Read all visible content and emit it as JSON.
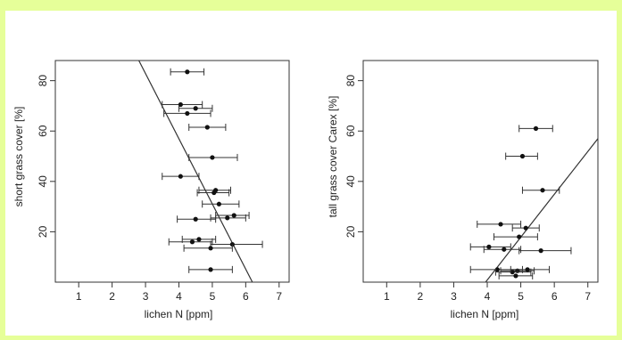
{
  "chart_data": [
    {
      "type": "scatter",
      "xlabel": "lichen N [ppm]",
      "ylabel": "short grass cover [%]",
      "x_ticks": [
        1,
        2,
        3,
        4,
        5,
        6,
        7
      ],
      "y_ticks": [
        20,
        40,
        60,
        80
      ],
      "xlim": [
        0.3,
        7.3
      ],
      "ylim": [
        0,
        88
      ],
      "points": [
        {
          "x": 4.25,
          "y": 83.5,
          "xerr_low": 3.75,
          "xerr_high": 4.75
        },
        {
          "x": 4.05,
          "y": 70.5,
          "xerr_low": 3.5,
          "xerr_high": 4.7
        },
        {
          "x": 4.5,
          "y": 69,
          "xerr_low": 4.0,
          "xerr_high": 5.0
        },
        {
          "x": 4.25,
          "y": 67,
          "xerr_low": 3.55,
          "xerr_high": 4.95
        },
        {
          "x": 4.85,
          "y": 61.5,
          "xerr_low": 4.3,
          "xerr_high": 5.4
        },
        {
          "x": 5.0,
          "y": 49.5,
          "xerr_low": 4.3,
          "xerr_high": 5.75
        },
        {
          "x": 4.05,
          "y": 42,
          "xerr_low": 3.5,
          "xerr_high": 4.6
        },
        {
          "x": 5.1,
          "y": 36.5,
          "xerr_low": 4.6,
          "xerr_high": 5.55
        },
        {
          "x": 5.05,
          "y": 35.5,
          "xerr_low": 4.55,
          "xerr_high": 5.5
        },
        {
          "x": 5.2,
          "y": 31,
          "xerr_low": 4.7,
          "xerr_high": 5.8
        },
        {
          "x": 5.65,
          "y": 26.5,
          "xerr_low": 5.1,
          "xerr_high": 6.1
        },
        {
          "x": 5.45,
          "y": 25.5,
          "xerr_low": 4.95,
          "xerr_high": 6.0
        },
        {
          "x": 4.5,
          "y": 25,
          "xerr_low": 3.95,
          "xerr_high": 5.1
        },
        {
          "x": 4.6,
          "y": 17,
          "xerr_low": 4.1,
          "xerr_high": 5.1
        },
        {
          "x": 4.4,
          "y": 16,
          "xerr_low": 3.7,
          "xerr_high": 5.0
        },
        {
          "x": 5.6,
          "y": 15,
          "xerr_low": 4.95,
          "xerr_high": 6.5
        },
        {
          "x": 4.95,
          "y": 13.5,
          "xerr_low": 4.15,
          "xerr_high": 5.6
        },
        {
          "x": 4.95,
          "y": 5,
          "xerr_low": 4.3,
          "xerr_high": 5.6
        }
      ],
      "fit_line": [
        {
          "x": 2.8,
          "y": 88
        },
        {
          "x": 6.2,
          "y": 0
        }
      ],
      "grid": false
    },
    {
      "type": "scatter",
      "xlabel": "lichen N [ppm]",
      "ylabel": "tall grass cover Carex [%]",
      "x_ticks": [
        1,
        2,
        3,
        4,
        5,
        6,
        7
      ],
      "y_ticks": [
        20,
        40,
        60,
        80
      ],
      "xlim": [
        0.3,
        7.3
      ],
      "ylim": [
        0,
        88
      ],
      "points": [
        {
          "x": 5.45,
          "y": 61,
          "xerr_low": 4.95,
          "xerr_high": 5.95
        },
        {
          "x": 5.05,
          "y": 50,
          "xerr_low": 4.55,
          "xerr_high": 5.5
        },
        {
          "x": 5.65,
          "y": 36.5,
          "xerr_low": 5.05,
          "xerr_high": 6.15
        },
        {
          "x": 4.4,
          "y": 23,
          "xerr_low": 3.7,
          "xerr_high": 5.0
        },
        {
          "x": 5.15,
          "y": 21.5,
          "xerr_low": 4.75,
          "xerr_high": 5.55
        },
        {
          "x": 4.95,
          "y": 18,
          "xerr_low": 4.2,
          "xerr_high": 5.5
        },
        {
          "x": 4.05,
          "y": 14,
          "xerr_low": 3.5,
          "xerr_high": 4.7
        },
        {
          "x": 4.5,
          "y": 13,
          "xerr_low": 3.9,
          "xerr_high": 5.0
        },
        {
          "x": 5.6,
          "y": 12.5,
          "xerr_low": 4.95,
          "xerr_high": 6.5
        },
        {
          "x": 4.3,
          "y": 5,
          "xerr_low": 3.5,
          "xerr_high": 5.05
        },
        {
          "x": 4.9,
          "y": 4.5,
          "xerr_low": 4.4,
          "xerr_high": 5.4
        },
        {
          "x": 4.75,
          "y": 4,
          "xerr_low": 4.25,
          "xerr_high": 5.3
        },
        {
          "x": 5.2,
          "y": 5,
          "xerr_low": 4.7,
          "xerr_high": 5.85
        },
        {
          "x": 4.85,
          "y": 2.5,
          "xerr_low": 4.35,
          "xerr_high": 5.35
        }
      ],
      "fit_line": [
        {
          "x": 3.95,
          "y": 0
        },
        {
          "x": 7.3,
          "y": 57
        }
      ],
      "grid": false
    }
  ]
}
